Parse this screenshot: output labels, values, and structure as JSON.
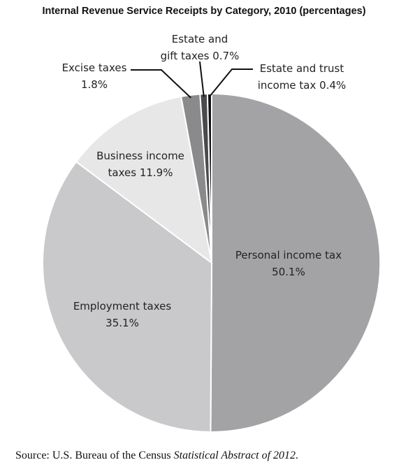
{
  "chart_data": {
    "type": "pie",
    "title": "Internal Revenue Service Receipts by Category, 2010 (percentages)",
    "start_angle_deg": 0,
    "direction": "clockwise",
    "slices": [
      {
        "name": "Personal income tax",
        "value": 50.1,
        "label_lines": [
          "Personal income tax",
          "50.1%"
        ],
        "color": "#a3a3a5"
      },
      {
        "name": "Employment taxes",
        "value": 35.1,
        "label_lines": [
          "Employment taxes",
          "35.1%"
        ],
        "color": "#c9c9cb"
      },
      {
        "name": "Business income taxes",
        "value": 11.9,
        "label_lines": [
          "Business income",
          "taxes 11.9%"
        ],
        "color": "#e7e7e8"
      },
      {
        "name": "Excise taxes",
        "value": 1.8,
        "label_lines": [
          "Excise taxes",
          "1.8%"
        ],
        "color": "#8a8a8c"
      },
      {
        "name": "Estate and gift taxes",
        "value": 0.7,
        "label_lines": [
          "Estate and",
          "gift taxes 0.7%"
        ],
        "color": "#4a4a4c"
      },
      {
        "name": "Estate and trust income tax",
        "value": 0.4,
        "label_lines": [
          "Estate and trust",
          "income tax 0.4%"
        ],
        "color": "#111111"
      }
    ]
  },
  "source": {
    "prefix": "Source: U.S. Bureau of the Census ",
    "italic": "Statistical Abstract of 2012",
    "suffix": "."
  }
}
